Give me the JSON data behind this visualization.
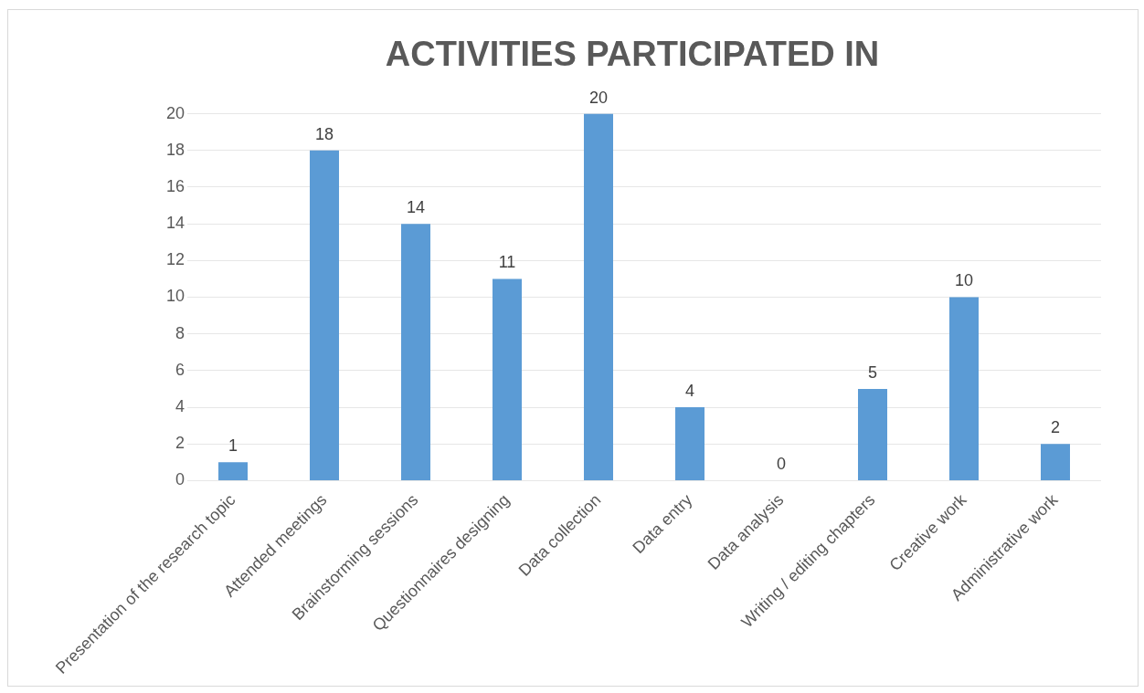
{
  "chart_data": {
    "type": "bar",
    "title": "ACTIVITIES PARTICIPATED IN",
    "categories": [
      "Presentation of the research topic",
      "Attended meetings",
      "Brainstorming sessions",
      "Questionnaires designing",
      "Data collection",
      "Data entry",
      "Data analysis",
      "Writing / editing chapters",
      "Creative work",
      "Administrative work"
    ],
    "values": [
      1,
      18,
      14,
      11,
      20,
      4,
      0,
      5,
      10,
      2
    ],
    "color": "#5b9bd5",
    "ylim": [
      0,
      20
    ],
    "yticks": [
      0,
      2,
      4,
      6,
      8,
      10,
      12,
      14,
      16,
      18,
      20
    ],
    "grid": "y",
    "data_labels": true,
    "legend": false
  }
}
